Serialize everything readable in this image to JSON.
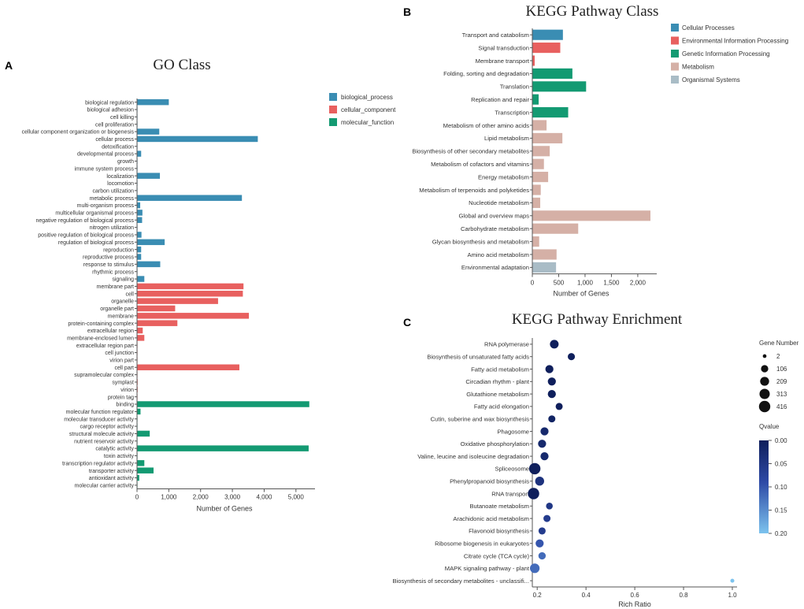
{
  "panel_labels": [
    "A",
    "B",
    "C"
  ],
  "colors": {
    "biological_process": "#3a8db3",
    "cellular_component": "#e8605f",
    "molecular_function": "#139a72",
    "cellular_processes": "#3a8db3",
    "environmental_information_processing": "#e8605f",
    "genetic_information_processing": "#139a72",
    "metabolism": "#d5b0a6",
    "organismal_systems": "#a9bcc6"
  },
  "chart_data": [
    {
      "type": "bar",
      "orientation": "horizontal",
      "title": "GO Class",
      "xlabel": "Number of Genes",
      "ylabel": "",
      "xlim": [
        0,
        5500
      ],
      "xticks": [
        0,
        1000,
        2000,
        3000,
        4000,
        5000
      ],
      "xtick_labels": [
        "0",
        "1,000",
        "2,000",
        "3,000",
        "4,000",
        "5,000"
      ],
      "legend": [
        "biological_process",
        "cellular_component",
        "molecular_function"
      ],
      "legend_position": "top-right",
      "categories": [
        "biological regulation",
        "biological adhesion",
        "cell killing",
        "cell proliferation",
        "cellular component organization or biogenesis",
        "cellular process",
        "detoxification",
        "developmental process",
        "growth",
        "immune system process",
        "localization",
        "locomotion",
        "carbon utilization",
        "metabolic process",
        "multi-organism process",
        "multicellular organismal process",
        "negative regulation of biological process",
        "nitrogen utilization",
        "positive regulation of biological process",
        "regulation of biological process",
        "reproduction",
        "reproductive process",
        "response to stimulus",
        "rhythmic process",
        "signaling",
        "membrane part",
        "cell",
        "organelle",
        "organelle part",
        "membrane",
        "protein-containing complex",
        "extracellular region",
        "membrane-enclosed lumen",
        "extracellular region part",
        "cell junction",
        "virion part",
        "cell part",
        "supramolecular complex",
        "symplast",
        "virion",
        "protein tag",
        "binding",
        "molecular function regulator",
        "molecular transducer activity",
        "cargo receptor activity",
        "structural molecule activity",
        "nutrient reservoir activity",
        "catalytic activity",
        "toxin activity",
        "transcription regulator activity",
        "transporter activity",
        "antioxidant activity",
        "molecular carrier activity"
      ],
      "groups": [
        "biological_process",
        "biological_process",
        "biological_process",
        "biological_process",
        "biological_process",
        "biological_process",
        "biological_process",
        "biological_process",
        "biological_process",
        "biological_process",
        "biological_process",
        "biological_process",
        "biological_process",
        "biological_process",
        "biological_process",
        "biological_process",
        "biological_process",
        "biological_process",
        "biological_process",
        "biological_process",
        "biological_process",
        "biological_process",
        "biological_process",
        "biological_process",
        "biological_process",
        "cellular_component",
        "cellular_component",
        "cellular_component",
        "cellular_component",
        "cellular_component",
        "cellular_component",
        "cellular_component",
        "cellular_component",
        "cellular_component",
        "cellular_component",
        "cellular_component",
        "cellular_component",
        "cellular_component",
        "cellular_component",
        "cellular_component",
        "cellular_component",
        "molecular_function",
        "molecular_function",
        "molecular_function",
        "molecular_function",
        "molecular_function",
        "molecular_function",
        "molecular_function",
        "molecular_function",
        "molecular_function",
        "molecular_function",
        "molecular_function",
        "molecular_function"
      ],
      "values": [
        1000,
        5,
        5,
        5,
        700,
        3800,
        5,
        130,
        5,
        10,
        720,
        5,
        5,
        3300,
        100,
        170,
        160,
        5,
        140,
        870,
        130,
        130,
        730,
        5,
        230,
        3350,
        3330,
        2550,
        1200,
        3520,
        1270,
        180,
        230,
        5,
        5,
        5,
        3220,
        5,
        20,
        20,
        5,
        5420,
        110,
        5,
        5,
        400,
        5,
        5400,
        5,
        230,
        520,
        70,
        5
      ]
    },
    {
      "type": "bar",
      "orientation": "horizontal",
      "title": "KEGG Pathway Class",
      "xlabel": "Number of Genes",
      "ylabel": "",
      "xlim": [
        0,
        2300
      ],
      "xticks": [
        0,
        500,
        1000,
        1500,
        2000
      ],
      "xtick_labels": [
        "0",
        "500",
        "1,000",
        "1,500",
        "2,000"
      ],
      "legend": [
        "Cellular Processes",
        "Environmental Information Processing",
        "Genetic Information Processing",
        "Metabolism",
        "Organismal Systems"
      ],
      "legend_position": "top-right",
      "categories": [
        "Transport and catabolism",
        "Signal transduction",
        "Membrane transport",
        "Folding, sorting and degradation",
        "Translation",
        "Replication and repair",
        "Transcription",
        "Metabolism of other amino acids",
        "Lipid metabolism",
        "Biosynthesis of other secondary metabolites",
        "Metabolism of cofactors and vitamins",
        "Energy metabolism",
        "Metabolism of terpenoids and polyketides",
        "Nucleotide metabolism",
        "Global and overview maps",
        "Carbohydrate metabolism",
        "Glycan biosynthesis and metabolism",
        "Amino acid metabolism",
        "Environmental adaptation"
      ],
      "groups": [
        0,
        1,
        1,
        2,
        2,
        2,
        2,
        3,
        3,
        3,
        3,
        3,
        3,
        3,
        3,
        3,
        3,
        3,
        4
      ],
      "values": [
        580,
        530,
        45,
        760,
        1020,
        120,
        680,
        270,
        570,
        330,
        220,
        300,
        160,
        150,
        2240,
        870,
        130,
        460,
        450
      ]
    },
    {
      "type": "scatter",
      "title": "KEGG Pathway Enrichment",
      "xlabel": "Rich Ratio",
      "ylabel": "",
      "xlim": [
        0.18,
        1.0
      ],
      "xticks": [
        0.2,
        0.4,
        0.6,
        0.8,
        1.0
      ],
      "xtick_labels": [
        "0.2",
        "0.4",
        "0.6",
        "0.8",
        "1.0"
      ],
      "size_legend_title": "Gene Number",
      "size_legend_values": [
        2,
        106,
        209,
        313,
        416
      ],
      "color_legend_title": "Qvalue",
      "color_legend_ticks": [
        0.0,
        0.05,
        0.1,
        0.15,
        0.2
      ],
      "color_legend_tick_labels": [
        "0.00",
        "0.05",
        "0.10",
        "0.15",
        "0.20"
      ],
      "categories": [
        "RNA polymerase",
        "Biosynthesis of unsaturated fatty acids",
        "Fatty acid metabolism",
        "Circadian rhythm - plant",
        "Glutathione metabolism",
        "Fatty acid elongation",
        "Cutin, suberine and wax biosynthesis",
        "Phagosome",
        "Oxidative phosphorylation",
        "Valine, leucine and isoleucine degradation",
        "Spliceosome",
        "Phenylpropanoid biosynthesis",
        "RNA transport",
        "Butanoate metabolism",
        "Arachidonic acid metabolism",
        "Flavonoid biosynthesis",
        "Ribosome biogenesis in eukaryotes",
        "Citrate cycle (TCA cycle)",
        "MAPK signaling pathway - plant",
        "Biosynthesis of secondary metabolites - unclassifi..."
      ],
      "rich_ratio": [
        0.27,
        0.34,
        0.25,
        0.26,
        0.26,
        0.29,
        0.26,
        0.23,
        0.22,
        0.23,
        0.19,
        0.21,
        0.185,
        0.25,
        0.24,
        0.22,
        0.21,
        0.22,
        0.19,
        1.0
      ],
      "gene_number": [
        190,
        100,
        150,
        150,
        150,
        95,
        95,
        150,
        150,
        150,
        416,
        210,
        416,
        80,
        95,
        100,
        150,
        110,
        260,
        4
      ],
      "qvalue": [
        0.0,
        0.0,
        0.0,
        0.0,
        0.0,
        0.0,
        0.01,
        0.02,
        0.02,
        0.02,
        0.0,
        0.04,
        0.0,
        0.05,
        0.06,
        0.06,
        0.1,
        0.12,
        0.12,
        0.2
      ]
    }
  ]
}
